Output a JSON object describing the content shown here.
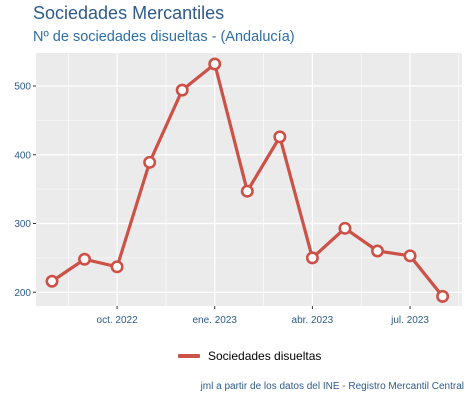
{
  "chart_data": {
    "type": "line",
    "title": "Sociedades Mercantiles",
    "subtitle": "Nº de sociedades disueltas - (Andalucía)",
    "x": [
      "2022-08",
      "2022-09",
      "2022-10",
      "2022-11",
      "2022-12",
      "2023-01",
      "2023-02",
      "2023-03",
      "2023-04",
      "2023-05",
      "2023-06",
      "2023-07",
      "2023-08"
    ],
    "series": [
      {
        "name": "Sociedades disueltas",
        "values": [
          216,
          248,
          237,
          389,
          494,
          532,
          347,
          426,
          250,
          293,
          260,
          253,
          194
        ]
      }
    ],
    "x_ticks": [
      {
        "label": "oct. 2022",
        "index": 2
      },
      {
        "label": "ene. 2023",
        "index": 5
      },
      {
        "label": "abr. 2023",
        "index": 8
      },
      {
        "label": "jul. 2023",
        "index": 11
      }
    ],
    "y_ticks": [
      200,
      300,
      400,
      500
    ],
    "ylim": [
      180,
      548
    ],
    "grid": true,
    "legend_position": "bottom",
    "colors": {
      "line": "#cc5248",
      "panel": "#ebebeb",
      "grid": "#ffffff",
      "text": "#2e5b8a"
    }
  },
  "caption": "jml a partir de los datos del INE - Registro Mercantil Central"
}
